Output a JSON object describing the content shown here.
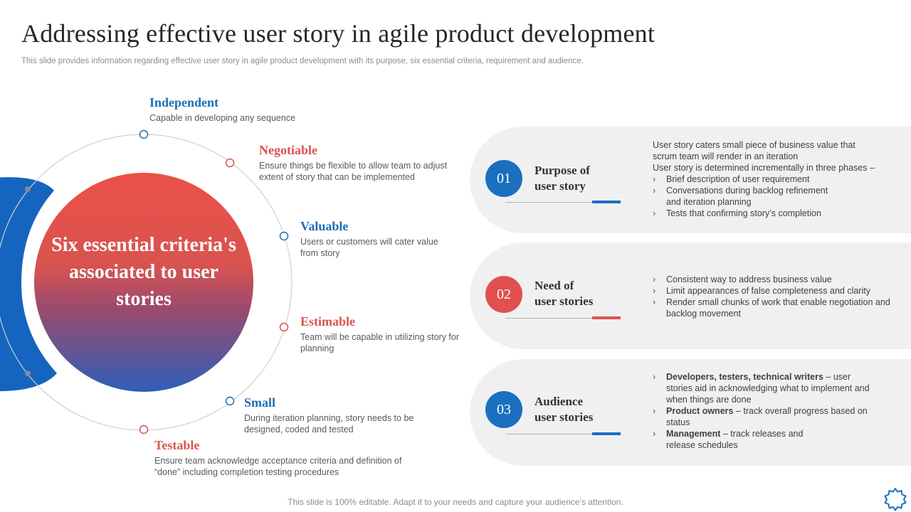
{
  "header": {
    "title": "Addressing effective user story in agile product development",
    "subtitle": "This slide provides information regarding effective user story in agile product development with its purpose, six essential criteria, requirement and audience."
  },
  "center": {
    "text": "Six essential criteria's associated to user stories"
  },
  "criteria": [
    {
      "title": "Independent",
      "desc": "Capable in developing  any sequence",
      "color": "#1c6fb5"
    },
    {
      "title": "Negotiable",
      "desc": "Ensure things be flexible to allow team to adjust extent of story that can be implemented",
      "color": "#d9534f"
    },
    {
      "title": "Valuable",
      "desc": "Users or customers will cater value from story",
      "color": "#1c6fb5"
    },
    {
      "title": "Estimable",
      "desc": "Team will be capable in utilizing story for planning",
      "color": "#d9534f"
    },
    {
      "title": "Small",
      "desc": "During iteration planning, story needs to be designed, coded and tested",
      "color": "#1c6fb5"
    },
    {
      "title": "Testable",
      "desc": "Ensure team acknowledge acceptance criteria and definition of “done” including completion testing procedures",
      "color": "#d9534f"
    }
  ],
  "cards": [
    {
      "number": "01",
      "title_line1": "Purpose of",
      "title_line2": "user story",
      "intro1": "User story caters small piece of business value that scrum team will render in an iteration",
      "intro2": "User story is determined incrementally in three phases –",
      "bullets": [
        "Brief description of user requirement",
        "Conversations  during  backlog refinement and iteration planning",
        "Tests that confirming story’s completion"
      ]
    },
    {
      "number": "02",
      "title_line1": "Need of",
      "title_line2": "user stories",
      "bullets": [
        "Consistent way to address business value",
        "Limit appearances of false completeness and clarity",
        "Render small chunks of work that enable negotiation and backlog movement"
      ]
    },
    {
      "number": "03",
      "title_line1": "Audience",
      "title_line2": "user stories",
      "bullets": [
        {
          "bold": "Developers, testers,  technical writers",
          "text": " – user stories aid in acknowledging what to implement and when things are done"
        },
        {
          "bold": "Product owners",
          "text": " – track overall progress based on status"
        },
        {
          "bold": "Management",
          "text": " – track releases and release schedules"
        }
      ]
    }
  ],
  "footer": {
    "text": "This slide is 100% editable. Adapt it to your needs and capture your audience’s attention."
  },
  "colors": {
    "blue": "#1a6fbf",
    "red": "#e05050",
    "card_bg": "#f0f0f0"
  },
  "icons": {
    "corner": "gear-icon"
  }
}
